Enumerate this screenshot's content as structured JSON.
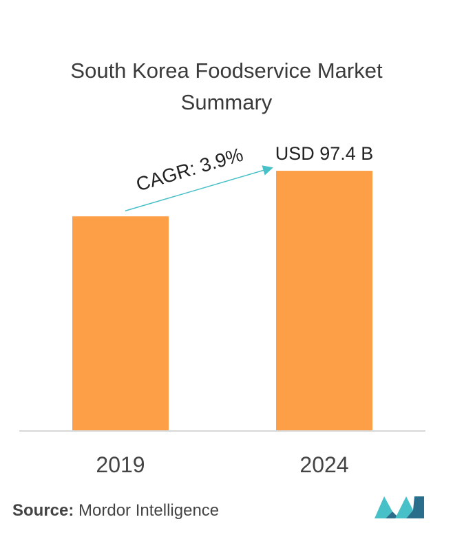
{
  "chart_data": {
    "type": "bar",
    "title_lines": [
      "South Korea Foodservice Market",
      "Summary"
    ],
    "categories": [
      "2019",
      "2024"
    ],
    "values": [
      80.3,
      97.4
    ],
    "data_labels": [
      "",
      "USD 97.4 B"
    ],
    "annotation": "CAGR: 3.9%",
    "ylim": [
      0,
      100
    ],
    "bar_color": "#fd9f46",
    "arrow_color": "#48c0c8",
    "axis_color": "#cccccc"
  },
  "source": {
    "label": "Source:",
    "text": "Mordor Intelligence"
  },
  "logo": {
    "icon": "mordor-intelligence-logo-icon",
    "colors": [
      "#2a6e8c",
      "#48c0c8"
    ]
  }
}
